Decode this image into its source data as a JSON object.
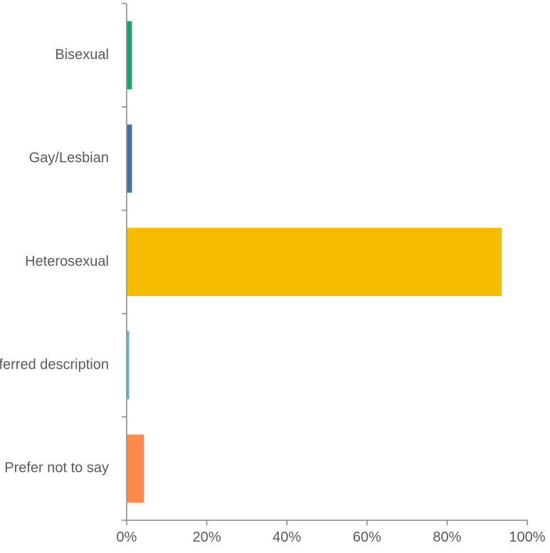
{
  "chart_data": {
    "type": "bar",
    "orientation": "horizontal",
    "categories": [
      "Bisexual",
      "Gay/Lesbian",
      "Heterosexual",
      "Preferred description",
      "Prefer not to say"
    ],
    "values": [
      1.2,
      1.2,
      93.5,
      0.5,
      4.2
    ],
    "colors": [
      "#1aa36b",
      "#4a6fa5",
      "#f6bd00",
      "#5bb8c9",
      "#ff8a4c"
    ],
    "xlim": [
      0,
      100
    ],
    "xticks": [
      0,
      20,
      40,
      60,
      80,
      100
    ],
    "xtick_labels": [
      "0%",
      "20%",
      "40%",
      "60%",
      "80%",
      "100%"
    ],
    "grid": false,
    "title": "",
    "xlabel": "",
    "ylabel": ""
  }
}
